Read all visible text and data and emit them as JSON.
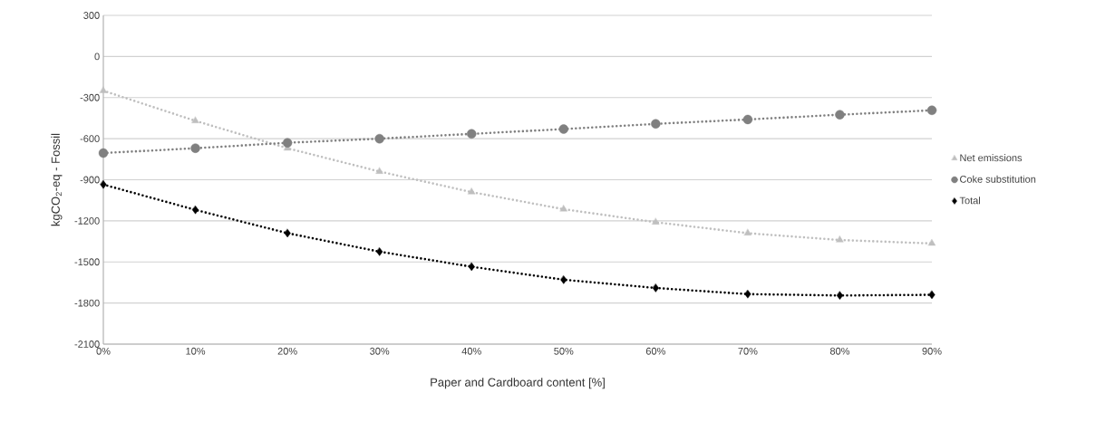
{
  "chart_data": {
    "type": "line",
    "xlabel": "Paper and Cardboard content [%]",
    "ylabel": "kgCO$_{2}$-eq - Fossil",
    "categories": [
      "0%",
      "10%",
      "20%",
      "30%",
      "40%",
      "50%",
      "60%",
      "70%",
      "80%",
      "90%"
    ],
    "series": [
      {
        "name": "Net emissions",
        "color": "#bfbfbf",
        "marker": "triangle",
        "values": [
          -250,
          -470,
          -670,
          -840,
          -990,
          -1115,
          -1210,
          -1290,
          -1340,
          -1365
        ]
      },
      {
        "name": "Coke substitution",
        "color": "#808080",
        "marker": "circle",
        "values": [
          -705,
          -670,
          -630,
          -600,
          -565,
          -530,
          -492,
          -460,
          -425,
          -393
        ]
      },
      {
        "name": "Total",
        "color": "#000000",
        "marker": "diamond",
        "values": [
          -935,
          -1120,
          -1290,
          -1425,
          -1535,
          -1630,
          -1690,
          -1735,
          -1745,
          -1740
        ]
      }
    ],
    "ylim": [
      -2100,
      300
    ],
    "yticks": [
      -2100,
      -1800,
      -1500,
      -1200,
      -900,
      -600,
      -300,
      0,
      300
    ],
    "grid": "y",
    "legend": "right",
    "line_style": "dotted"
  }
}
